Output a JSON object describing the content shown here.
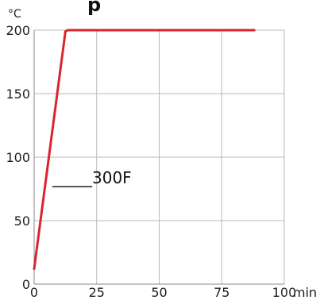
{
  "chart_data": {
    "type": "line",
    "title_fragment": "p",
    "ylabel": "°C",
    "xlabel": "min",
    "xlim": [
      0,
      100
    ],
    "ylim": [
      0,
      200
    ],
    "xticks": [
      0,
      25,
      50,
      75,
      100
    ],
    "yticks": [
      0,
      50,
      100,
      150,
      200
    ],
    "grid": true,
    "series": [
      {
        "color": "#d8262e",
        "points": [
          {
            "x": 0,
            "y": 12
          },
          {
            "x": 12.5,
            "y": 199
          },
          {
            "x": 13.5,
            "y": 200
          },
          {
            "x": 88,
            "y": 200
          }
        ]
      }
    ],
    "annotation": "_____300F"
  }
}
